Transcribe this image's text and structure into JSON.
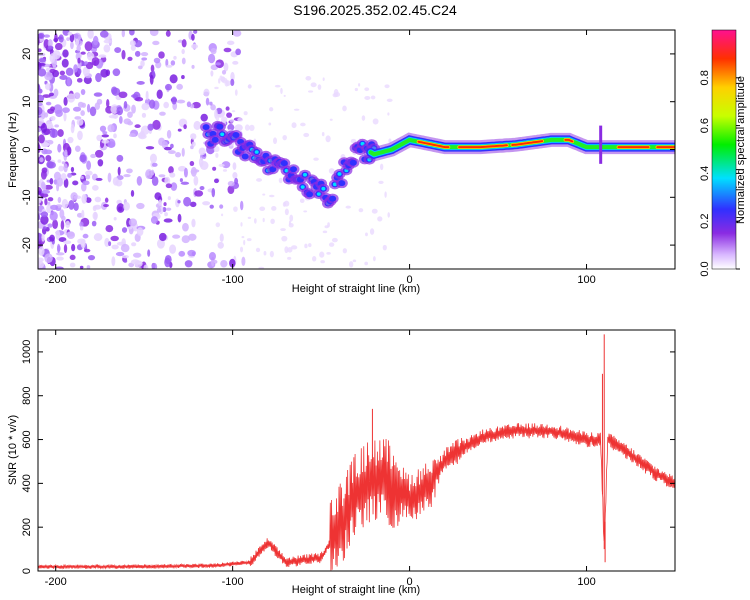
{
  "figure": {
    "title": "S196.2025.352.02.45.C24"
  },
  "chart_data": [
    {
      "type": "heatmap",
      "title": "S196.2025.352.02.45.C24",
      "xlabel": "Height of straight line (km)",
      "ylabel": "Frequency (Hz)",
      "xlim": [
        -210,
        150
      ],
      "ylim": [
        -25,
        25
      ],
      "xticks": [
        -200,
        -100,
        0,
        100
      ],
      "yticks": [
        -20,
        -10,
        0,
        10,
        20
      ],
      "colorbar": {
        "label": "Normalized spectral amplitude",
        "range": [
          0,
          1
        ],
        "ticks": [
          "0.0",
          "0.2",
          "0.4",
          "0.6",
          "0.8"
        ]
      },
      "ridge": {
        "description_points_x": [
          -115,
          -105,
          -95,
          -85,
          -75,
          -65,
          -55,
          -45,
          -35,
          -25,
          -20,
          -10,
          0,
          20,
          40,
          60,
          80,
          90,
          100,
          110,
          130,
          150
        ],
        "description_points_y": [
          3,
          3,
          1,
          -2,
          -4,
          -6,
          -8,
          -10,
          -3,
          0,
          -1,
          0,
          2,
          0.5,
          0.5,
          1,
          2,
          2,
          0.5,
          0.5,
          0.5,
          0.5
        ]
      }
    },
    {
      "type": "line",
      "xlabel": "Height of straight line (km)",
      "ylabel": "SNR (10 * v/v)",
      "xlim": [
        -210,
        150
      ],
      "ylim": [
        0,
        1100
      ],
      "xticks": [
        -200,
        -100,
        0,
        100
      ],
      "yticks": [
        0,
        200,
        400,
        600,
        800,
        1000
      ],
      "color": "#ee3333",
      "envelope_x": [
        -210,
        -150,
        -110,
        -90,
        -80,
        -70,
        -50,
        -40,
        -30,
        -20,
        -10,
        0,
        10,
        20,
        30,
        40,
        60,
        80,
        100,
        108,
        110,
        112,
        120,
        130,
        140,
        150
      ],
      "envelope_y": [
        20,
        20,
        25,
        40,
        130,
        40,
        60,
        200,
        350,
        420,
        400,
        330,
        380,
        500,
        560,
        610,
        640,
        640,
        600,
        600,
        100,
        600,
        560,
        500,
        440,
        400
      ],
      "spikes": [
        {
          "x": -21,
          "y": 740
        },
        {
          "x": 110,
          "y": 1080
        },
        {
          "x": 109,
          "y": 900
        },
        {
          "x": 110.5,
          "y": 40
        }
      ]
    }
  ]
}
